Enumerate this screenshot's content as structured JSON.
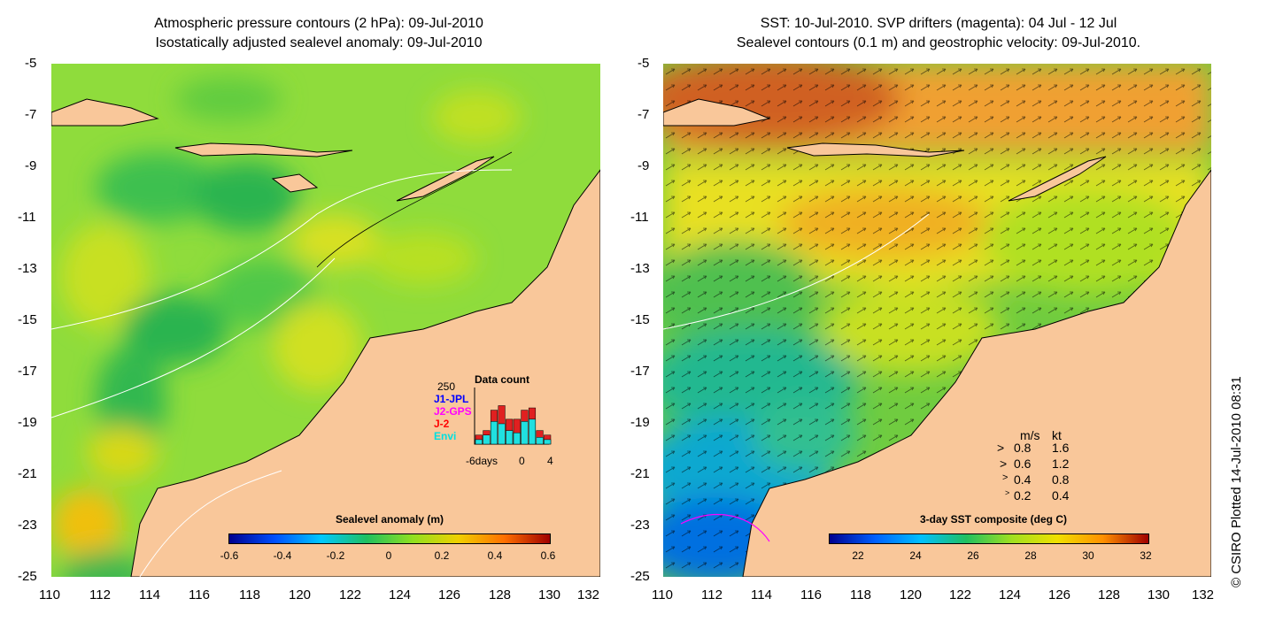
{
  "left_panel": {
    "title_line1": "Atmospheric pressure contours (2 hPa): 09-Jul-2010",
    "title_line2": "Isostatically adjusted sealevel anomaly: 09-Jul-2010",
    "colorbar": {
      "title": "Sealevel anomaly (m)",
      "labels": [
        "-0.6",
        "-0.4",
        "-0.2",
        "0",
        "0.2",
        "0.4",
        "0.6"
      ],
      "min": -0.6,
      "max": 0.6,
      "colors": [
        "#00008f",
        "#0050ff",
        "#00c8ff",
        "#20c060",
        "#90e020",
        "#f0d000",
        "#ff7000",
        "#a00000"
      ]
    },
    "inset": {
      "title": "Data count",
      "max_label": "250",
      "legend": [
        {
          "label": "J1-JPL",
          "color": "#0000ff"
        },
        {
          "label": "J2-GPS",
          "color": "#ff00ff"
        },
        {
          "label": "J-2",
          "color": "#ff0000"
        },
        {
          "label": "Envi",
          "color": "#00e0e0"
        }
      ],
      "x_labels": [
        "-6days",
        "0",
        "4"
      ],
      "bars_total": [
        40,
        60,
        150,
        170,
        110,
        110,
        150,
        160,
        60,
        40
      ],
      "bars_cyan": [
        20,
        40,
        100,
        90,
        60,
        50,
        100,
        110,
        30,
        20
      ]
    }
  },
  "right_panel": {
    "title_line1": "SST: 10-Jul-2010. SVP drifters (magenta): 04 Jul - 12 Jul",
    "title_line2": "Sealevel contours (0.1 m) and geostrophic velocity: 09-Jul-2010.",
    "colorbar": {
      "title": "3-day SST composite (deg C)",
      "labels": [
        "22",
        "24",
        "26",
        "28",
        "30",
        "32"
      ],
      "min": 21,
      "max": 32,
      "colors": [
        "#000090",
        "#0060ff",
        "#00c0ff",
        "#20c060",
        "#a0e020",
        "#f0e000",
        "#ff9000",
        "#a00000"
      ]
    },
    "speed_scale": {
      "header_ms": "m/s",
      "header_kt": "kt",
      "rows": [
        {
          "ms": "0.8",
          "kt": "1.6"
        },
        {
          "ms": "0.6",
          "kt": "1.2"
        },
        {
          "ms": "0.4",
          "kt": "0.8"
        },
        {
          "ms": "0.2",
          "kt": "0.4"
        }
      ]
    }
  },
  "axes": {
    "x_labels": [
      "110",
      "112",
      "114",
      "116",
      "118",
      "120",
      "122",
      "124",
      "126",
      "128",
      "130",
      "132"
    ],
    "y_labels": [
      "-5",
      "-7",
      "-9",
      "-11",
      "-13",
      "-15",
      "-17",
      "-19",
      "-21",
      "-23",
      "-25"
    ],
    "lon_range": [
      110,
      132
    ],
    "lat_range": [
      -25,
      -5
    ]
  },
  "credit": "© CSIRO Plotted 14-Jul-2010 08:31",
  "colors": {
    "land": "#f9c79a",
    "coast": "#000000",
    "contour": "#ffffff"
  }
}
